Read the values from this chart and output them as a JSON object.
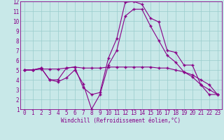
{
  "xlabel": "Windchill (Refroidissement éolien,°C)",
  "x": [
    0,
    1,
    2,
    3,
    4,
    5,
    6,
    7,
    8,
    9,
    10,
    11,
    12,
    13,
    14,
    15,
    16,
    17,
    18,
    19,
    20,
    21,
    22,
    23
  ],
  "line1": [
    5.0,
    5.0,
    5.2,
    4.0,
    4.0,
    5.2,
    5.3,
    3.2,
    2.5,
    2.7,
    6.2,
    8.2,
    11.9,
    12.0,
    11.7,
    10.3,
    9.9,
    7.0,
    6.8,
    5.5,
    5.5,
    3.5,
    3.0,
    2.5
  ],
  "line2": [
    5.0,
    5.0,
    5.1,
    5.1,
    5.1,
    5.2,
    5.3,
    5.2,
    5.2,
    5.2,
    5.3,
    5.3,
    5.3,
    5.3,
    5.3,
    5.3,
    5.2,
    5.2,
    5.0,
    4.8,
    4.5,
    4.0,
    3.5,
    2.5
  ],
  "line3": [
    5.0,
    5.0,
    5.2,
    4.0,
    3.8,
    4.2,
    5.0,
    3.6,
    1.0,
    2.5,
    5.5,
    7.0,
    10.5,
    11.2,
    11.2,
    9.5,
    8.0,
    6.5,
    5.8,
    4.8,
    4.3,
    3.5,
    2.5,
    2.5
  ],
  "line_color": "#880088",
  "bg_color": "#c8e8e8",
  "grid_color": "#99cccc",
  "ylim_min": 1,
  "ylim_max": 12,
  "yticks": [
    1,
    2,
    3,
    4,
    5,
    6,
    7,
    8,
    9,
    10,
    11,
    12
  ],
  "tick_fontsize": 5.5,
  "xlabel_fontsize": 5.5
}
